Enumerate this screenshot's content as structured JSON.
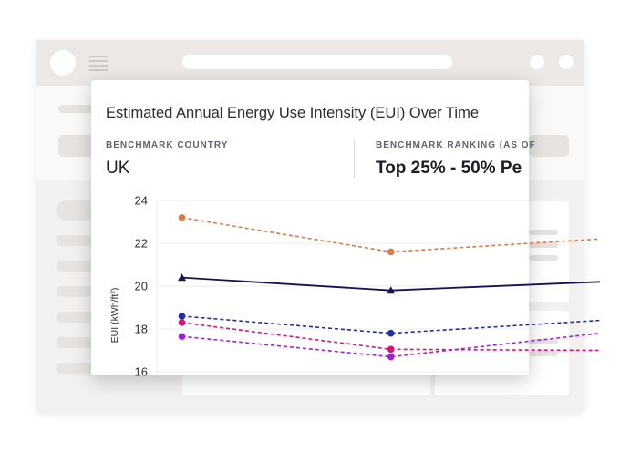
{
  "panel": {
    "title": "Estimated Annual Energy Use Intensity (EUI) Over Time",
    "benchmark_country": {
      "label": "BENCHMARK COUNTRY",
      "value": "UK"
    },
    "benchmark_ranking": {
      "label": "BENCHMARK RANKING (AS OF",
      "value": "Top 25% - 50% Pe"
    }
  },
  "background_icons": {
    "avatar": "avatar-circle",
    "menu": "hamburger-menu-icon"
  },
  "chart_data": {
    "type": "line",
    "ylabel": "EUI (kWh/ft²)",
    "xlabel": "",
    "ylim": [
      16,
      24
    ],
    "yticks": [
      "24",
      "22",
      "20",
      "18",
      "16"
    ],
    "x": [
      1,
      2,
      3
    ],
    "xlim": [
      0.88,
      2.66
    ],
    "grid": true,
    "series": [
      {
        "name": "orange",
        "values": [
          23.2,
          21.6,
          22.2
        ],
        "color": "#e07a3c",
        "style": "dashed",
        "marker": "circle"
      },
      {
        "name": "navy",
        "values": [
          20.4,
          19.8,
          20.2
        ],
        "color": "#1a1050",
        "style": "solid",
        "marker": "triangle"
      },
      {
        "name": "blue",
        "values": [
          18.6,
          17.8,
          18.4
        ],
        "color": "#1f2fa8",
        "style": "dashed",
        "marker": "circle"
      },
      {
        "name": "magenta",
        "values": [
          18.3,
          17.05,
          17.0
        ],
        "color": "#d6127a",
        "style": "dashed",
        "marker": "circle"
      },
      {
        "name": "purple",
        "values": [
          17.65,
          16.7,
          17.8
        ],
        "color": "#a31fd6",
        "style": "dashed",
        "marker": "circle"
      }
    ]
  }
}
